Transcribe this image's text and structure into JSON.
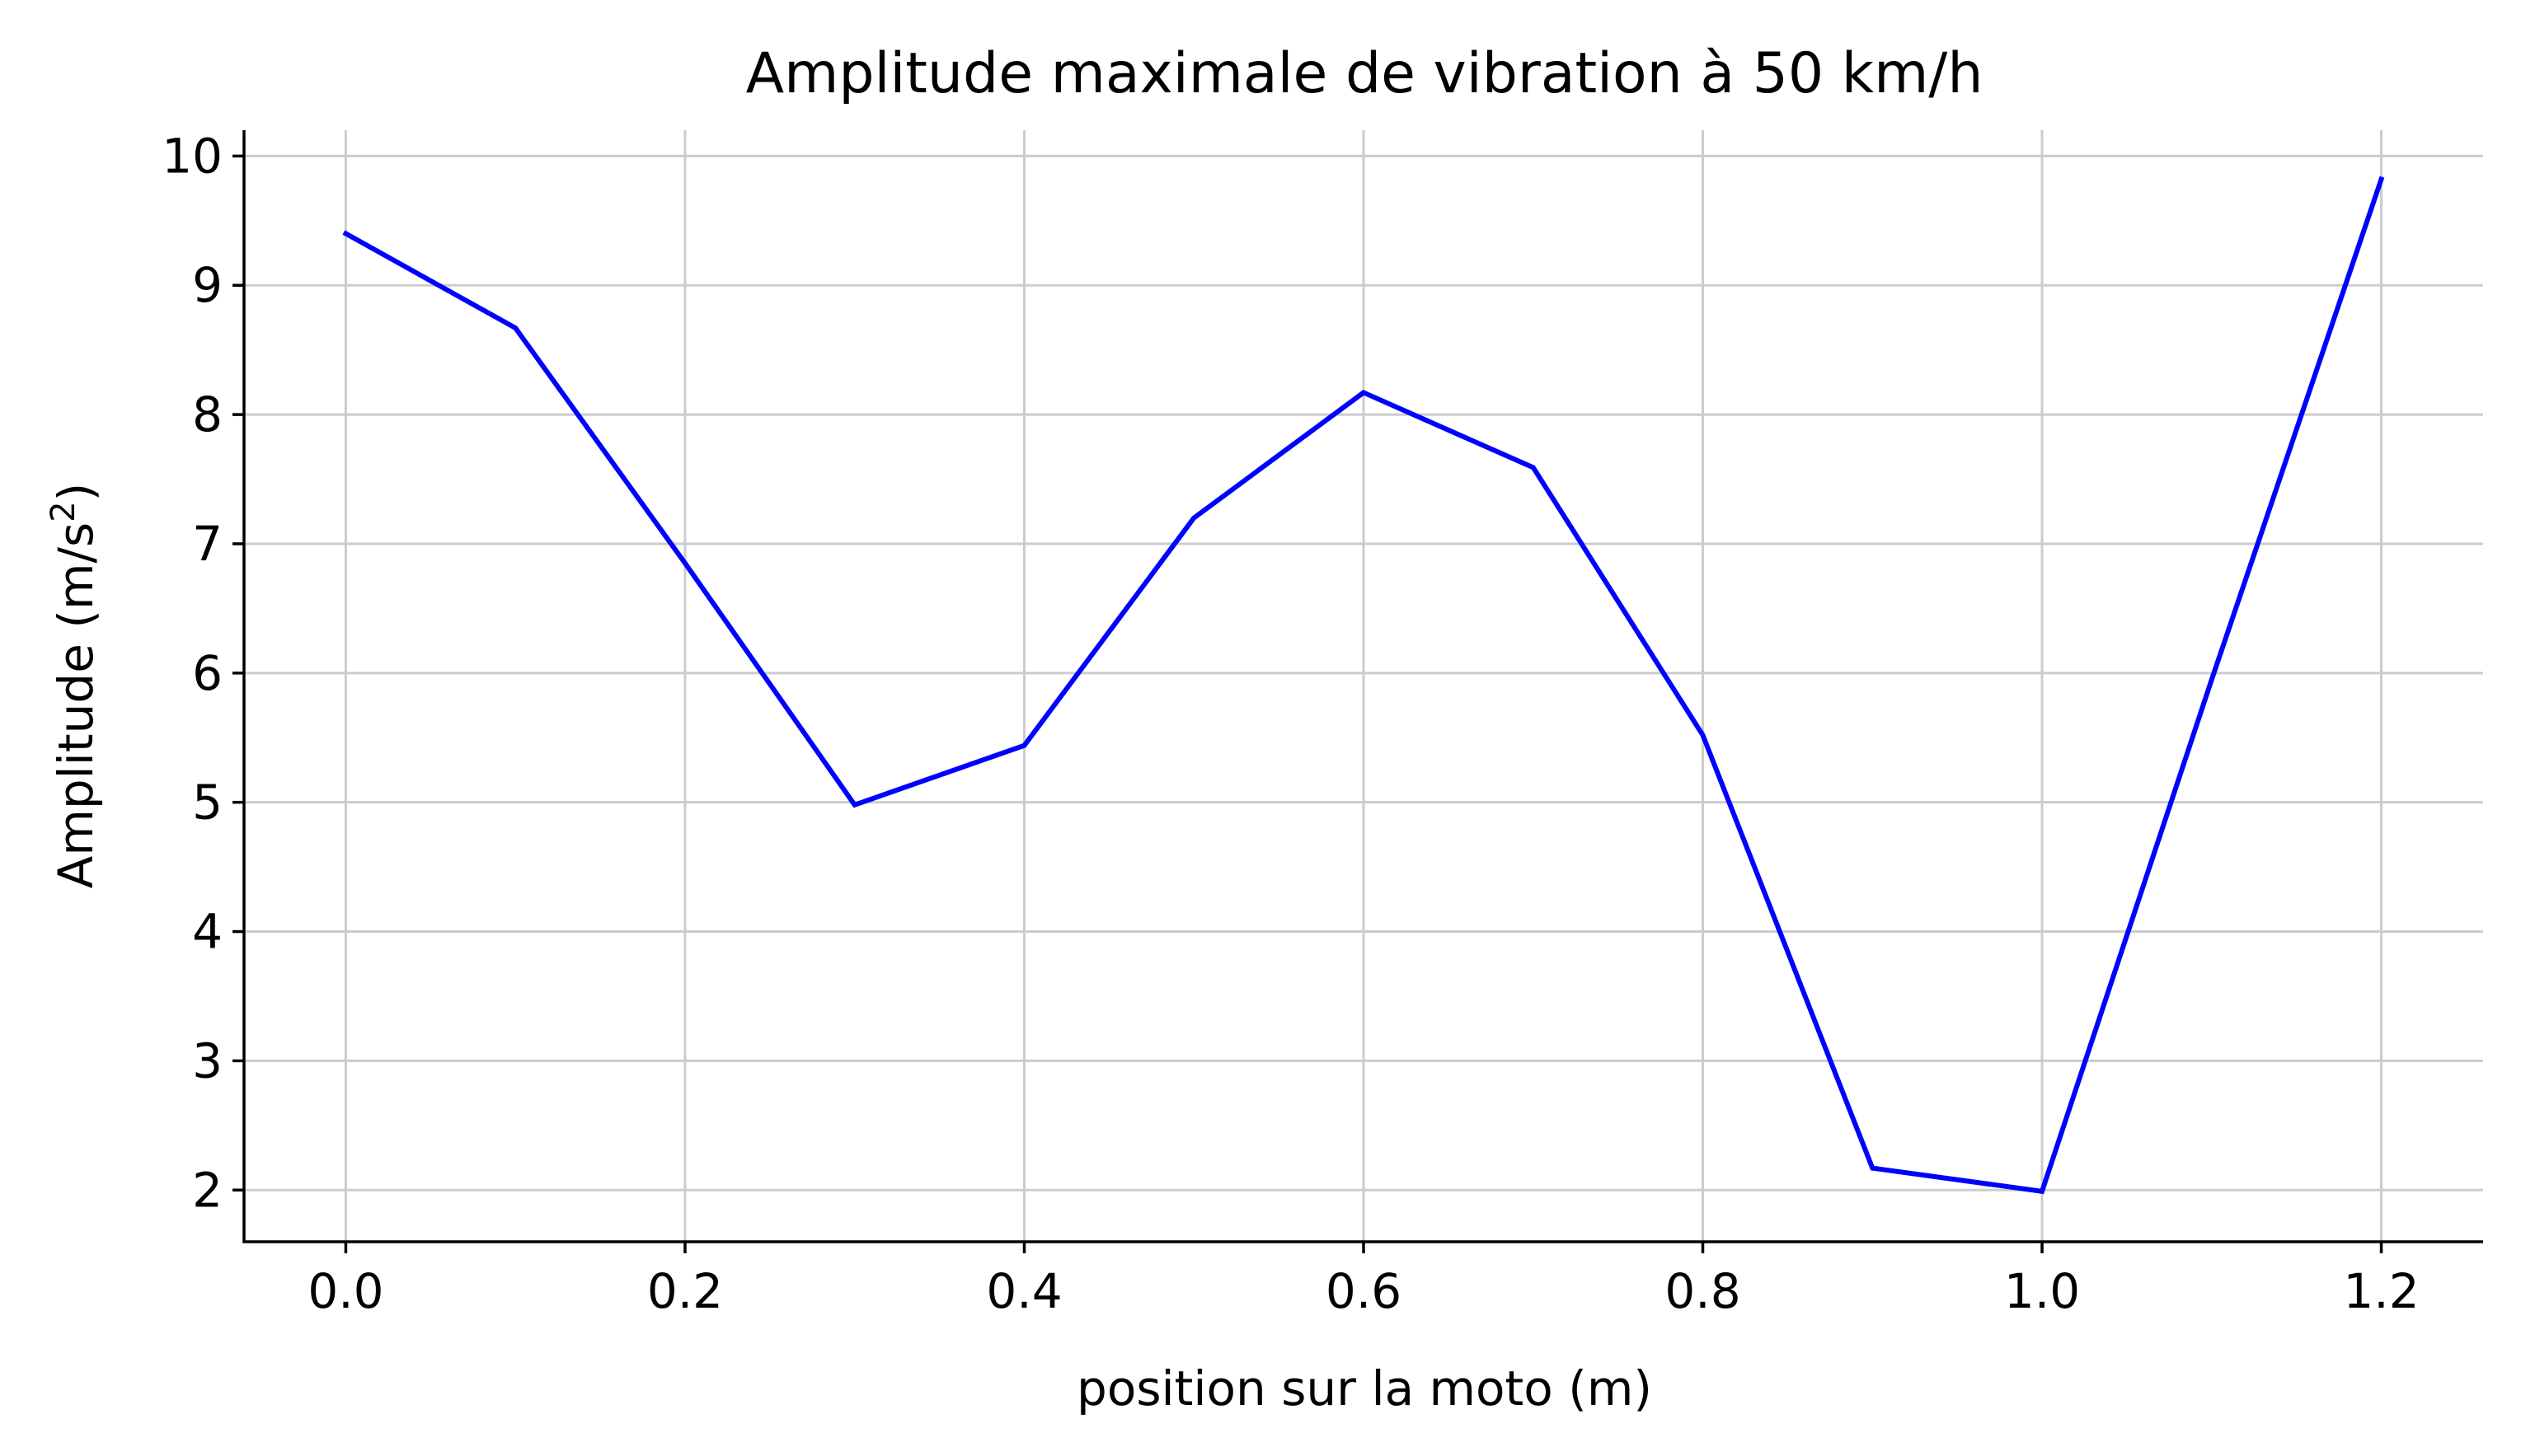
{
  "chart_data": {
    "type": "line",
    "title": "Amplitude maximale de vibration à 50 km/h",
    "xlabel": "position sur la moto (m)",
    "ylabel_main": "Amplitude (m/s",
    "ylabel_sup": "2",
    "ylabel_end": ")",
    "xlim": [
      -0.06,
      1.26
    ],
    "ylim": [
      1.6,
      10.2
    ],
    "xticks": [
      0.0,
      0.2,
      0.4,
      0.6,
      0.8,
      1.0,
      1.2
    ],
    "xtick_labels": [
      "0.0",
      "0.2",
      "0.4",
      "0.6",
      "0.8",
      "1.0",
      "1.2"
    ],
    "yticks": [
      2,
      3,
      4,
      5,
      6,
      7,
      8,
      9,
      10
    ],
    "ytick_labels": [
      "2",
      "3",
      "4",
      "5",
      "6",
      "7",
      "8",
      "9",
      "10"
    ],
    "grid": true,
    "series": [
      {
        "color": "#0000ff",
        "x": [
          0.0,
          0.1,
          0.2,
          0.3,
          0.4,
          0.5,
          0.6,
          0.7,
          0.8,
          0.9,
          1.0,
          1.1,
          1.2
        ],
        "y": [
          9.4,
          8.67,
          6.85,
          4.98,
          5.44,
          7.2,
          8.17,
          7.59,
          5.52,
          2.17,
          1.99,
          5.95,
          9.82
        ]
      }
    ]
  }
}
